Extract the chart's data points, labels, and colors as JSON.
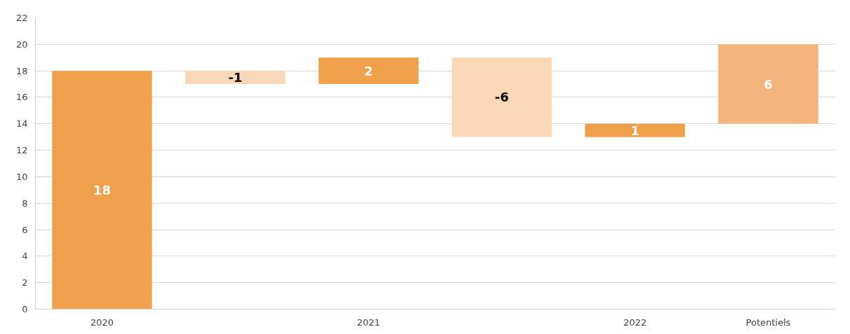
{
  "chart_data": {
    "type": "bar",
    "categories": [
      "2020",
      null,
      "2021",
      null,
      "2022",
      "Potentiels"
    ],
    "values": [
      18,
      -1,
      2,
      -6,
      1,
      6
    ],
    "base": [
      0,
      18,
      17,
      19,
      13,
      14
    ],
    "colors": [
      "#f0a04b",
      "#f8d8b7",
      "#f0a04b",
      "#f8d8b7",
      "#f0a04b",
      "#f3b47c"
    ],
    "data_labels": true,
    "ylim": [
      0,
      22
    ],
    "yticks": [
      0,
      2,
      4,
      6,
      8,
      10,
      12,
      14,
      16,
      18,
      20,
      22
    ],
    "grid": "y"
  }
}
